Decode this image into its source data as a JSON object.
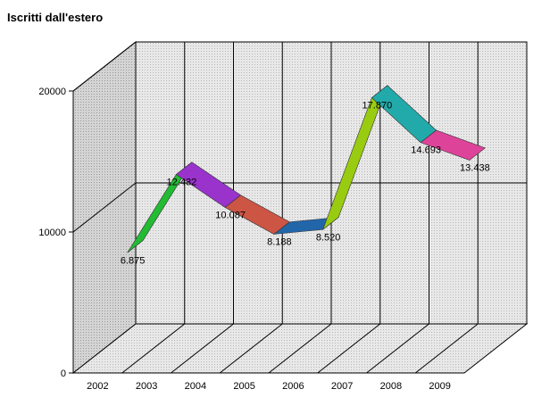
{
  "chart_data": {
    "type": "line",
    "style": "3d-ribbon",
    "title": "Iscritti dall'estero",
    "xlabel": "",
    "ylabel": "",
    "ylim": [
      0,
      20000
    ],
    "yticks": [
      0,
      10000,
      20000
    ],
    "categories": [
      "2002",
      "2003",
      "2004",
      "2005",
      "2006",
      "2007",
      "2008",
      "2009"
    ],
    "series": [
      {
        "values": [
          6875,
          12432,
          10087,
          8188,
          8520,
          17870,
          14693,
          13438
        ],
        "data_labels": [
          "6.875",
          "12.432",
          "10.087",
          "8.188",
          "8.520",
          "17.870",
          "14.693",
          "13.438"
        ]
      }
    ],
    "segment_colors": [
      "#22bb33",
      "#9933cc",
      "#cc5544",
      "#2266aa",
      "#99cc11",
      "#22aaaa",
      "#dd4499"
    ],
    "grid": true,
    "legend": "none"
  }
}
